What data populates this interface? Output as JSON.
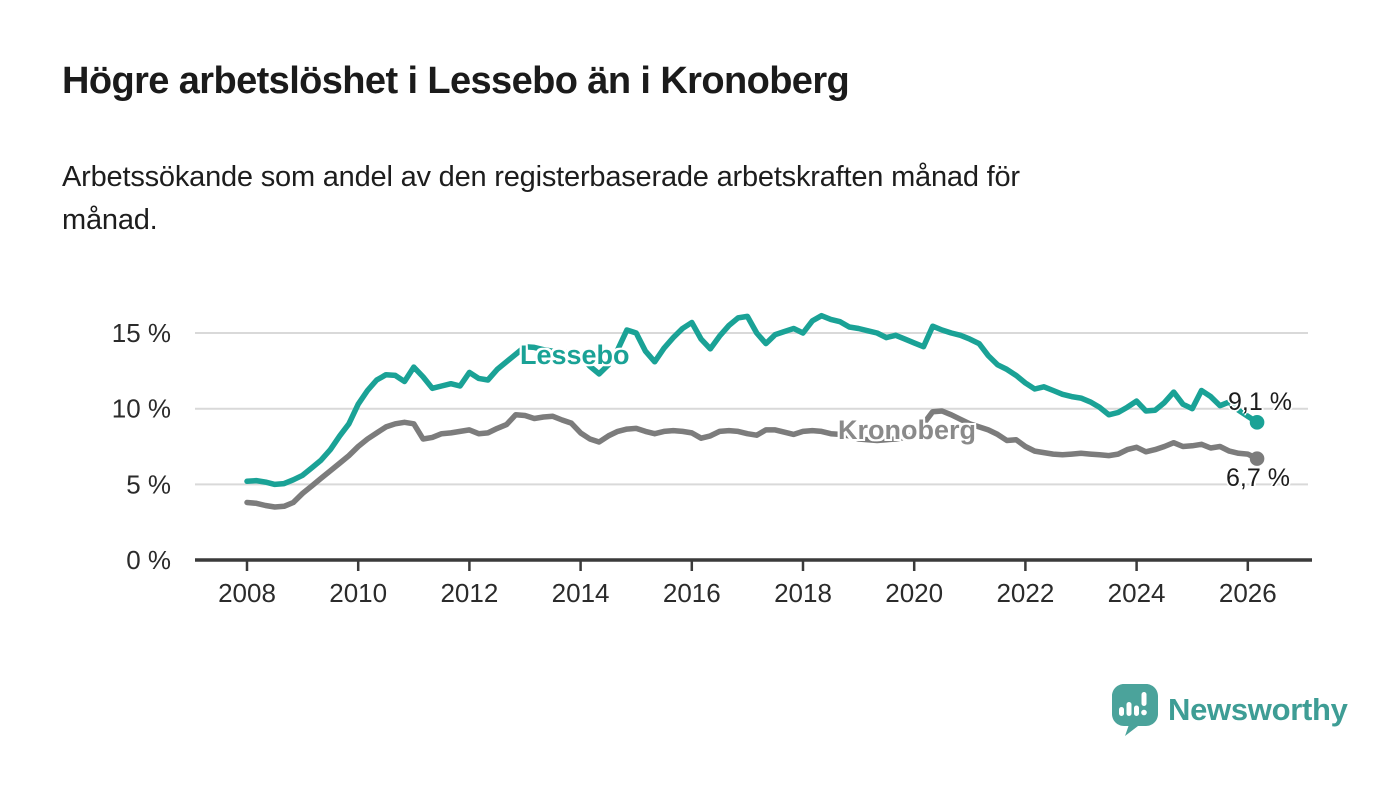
{
  "header": {
    "title": "Högre arbetslöshet i Lessebo än i Kronoberg",
    "subtitle_lines": [
      "Arbetssökande som andel av den registerbaserade arbetskraften månad för",
      "månad."
    ]
  },
  "chart_data": {
    "type": "line",
    "unit": "%",
    "grid": "horizontal",
    "x_start": 2008.0,
    "x_step_years": 0.1666667,
    "x_end_approx": 2026.17,
    "ylim": [
      0,
      17.4
    ],
    "xlim": [
      2007.1,
      2027.1
    ],
    "y_ticks": [
      {
        "value": 0,
        "label": "0 %"
      },
      {
        "value": 5,
        "label": "5 %"
      },
      {
        "value": 10,
        "label": "10 %"
      },
      {
        "value": 15,
        "label": "15 %"
      }
    ],
    "x_ticks": [
      {
        "value": 2008,
        "label": "2008"
      },
      {
        "value": 2010,
        "label": "2010"
      },
      {
        "value": 2012,
        "label": "2012"
      },
      {
        "value": 2014,
        "label": "2014"
      },
      {
        "value": 2016,
        "label": "2016"
      },
      {
        "value": 2018,
        "label": "2018"
      },
      {
        "value": 2020,
        "label": "2020"
      },
      {
        "value": 2022,
        "label": "2022"
      },
      {
        "value": 2024,
        "label": "2024"
      },
      {
        "value": 2026,
        "label": "2026"
      }
    ],
    "series": [
      {
        "name": "Lessebo",
        "color": "#1aa296",
        "end_label": "9,1 %",
        "last_value": 9.1,
        "values": [
          5.2,
          5.25,
          5.15,
          5.0,
          5.05,
          5.3,
          5.6,
          6.1,
          6.6,
          7.3,
          8.2,
          9.0,
          10.3,
          11.2,
          11.9,
          12.25,
          12.2,
          11.8,
          12.75,
          12.1,
          11.35,
          11.5,
          11.65,
          11.5,
          12.4,
          12.0,
          11.9,
          12.6,
          13.1,
          13.6,
          14.1,
          14.05,
          13.9,
          13.8,
          13.6,
          13.8,
          13.5,
          12.8,
          12.3,
          12.9,
          13.9,
          15.2,
          15.0,
          13.8,
          13.1,
          14.0,
          14.7,
          15.3,
          15.7,
          14.6,
          13.95,
          14.8,
          15.5,
          16.0,
          16.1,
          15.0,
          14.3,
          14.9,
          15.1,
          15.3,
          15.0,
          15.8,
          16.15,
          15.9,
          15.75,
          15.4,
          15.3,
          15.15,
          15.0,
          14.7,
          14.85,
          14.6,
          14.35,
          14.1,
          15.45,
          15.2,
          15.0,
          14.85,
          14.6,
          14.3,
          13.5,
          12.9,
          12.6,
          12.2,
          11.7,
          11.3,
          11.45,
          11.2,
          10.95,
          10.8,
          10.7,
          10.45,
          10.1,
          9.6,
          9.75,
          10.1,
          10.5,
          9.85,
          9.9,
          10.4,
          11.1,
          10.3,
          10.0,
          11.2,
          10.8,
          10.2,
          10.45,
          9.9,
          9.5,
          9.1
        ]
      },
      {
        "name": "Kronoberg",
        "color": "#7c7c7c",
        "end_label": "6,7 %",
        "last_value": 6.7,
        "values": [
          3.8,
          3.75,
          3.6,
          3.5,
          3.55,
          3.8,
          4.4,
          4.9,
          5.4,
          5.9,
          6.4,
          6.9,
          7.5,
          8.0,
          8.4,
          8.8,
          9.0,
          9.1,
          9.0,
          8.0,
          8.1,
          8.35,
          8.4,
          8.5,
          8.6,
          8.35,
          8.4,
          8.7,
          8.95,
          9.6,
          9.55,
          9.35,
          9.45,
          9.5,
          9.25,
          9.05,
          8.4,
          8.0,
          7.8,
          8.2,
          8.5,
          8.65,
          8.7,
          8.5,
          8.35,
          8.5,
          8.55,
          8.5,
          8.4,
          8.05,
          8.2,
          8.5,
          8.55,
          8.5,
          8.35,
          8.25,
          8.6,
          8.6,
          8.45,
          8.3,
          8.5,
          8.55,
          8.5,
          8.35,
          8.3,
          8.2,
          8.0,
          7.95,
          7.9,
          7.95,
          8.0,
          8.1,
          8.3,
          9.0,
          9.8,
          9.85,
          9.6,
          9.3,
          9.0,
          8.8,
          8.6,
          8.3,
          7.9,
          7.95,
          7.5,
          7.2,
          7.1,
          7.0,
          6.95,
          7.0,
          7.05,
          7.0,
          6.95,
          6.9,
          7.0,
          7.3,
          7.45,
          7.15,
          7.3,
          7.5,
          7.75,
          7.5,
          7.55,
          7.65,
          7.4,
          7.5,
          7.2,
          7.05,
          7.0,
          6.7
        ]
      }
    ]
  },
  "footer": {
    "brand": "Newsworthy",
    "logo_icon": "bar-chart-speech-bubble",
    "brand_color": "#3e9d95",
    "bubble_color": "#4ba39b"
  }
}
